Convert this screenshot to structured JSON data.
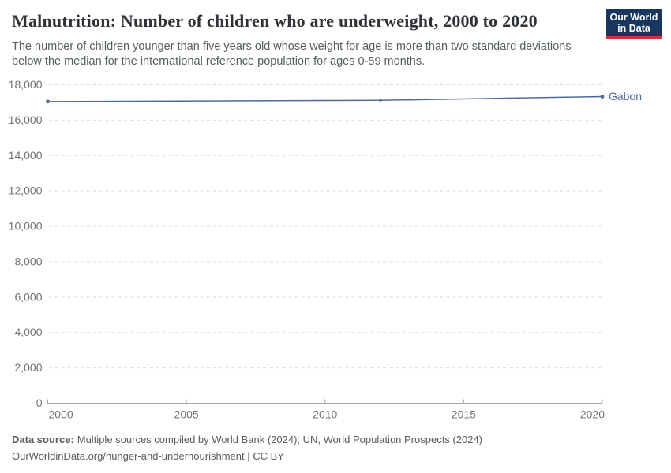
{
  "header": {
    "title": "Malnutrition: Number of children who are underweight, 2000 to 2020",
    "subtitle": "The number of children younger than five years old whose weight for age is more than two standard deviations below the median for the international reference population for ages 0-59 months.",
    "logo": {
      "line1": "Our World",
      "line2": "in Data",
      "bg_color": "#18375f",
      "stripe_color": "#cf352e"
    }
  },
  "chart_data": {
    "type": "line",
    "title": "Malnutrition: Number of children who are underweight, 2000 to 2020",
    "xlabel": "",
    "ylabel": "",
    "x": [
      2000,
      2012,
      2020
    ],
    "series": [
      {
        "name": "Gabon",
        "color": "#4C6A9C",
        "values": [
          17050,
          17120,
          17330
        ]
      }
    ],
    "xlim": [
      2000,
      2020
    ],
    "ylim": [
      0,
      18000
    ],
    "xticks": [
      2000,
      2005,
      2010,
      2015,
      2020
    ],
    "yticks": [
      0,
      2000,
      4000,
      6000,
      8000,
      10000,
      12000,
      14000,
      16000,
      18000
    ],
    "grid": "horizontal-dashed",
    "legend": "line-end-label",
    "colors": {
      "grid": "#dcdcdc",
      "axis": "#a5a5a5",
      "tick_text": "#737373"
    }
  },
  "footer": {
    "source_label": "Data source:",
    "source_text": "Multiple sources compiled by World Bank (2024); UN, World Population Prospects (2024)",
    "link_text": "OurWorldinData.org/hunger-and-undernourishment | CC BY"
  }
}
